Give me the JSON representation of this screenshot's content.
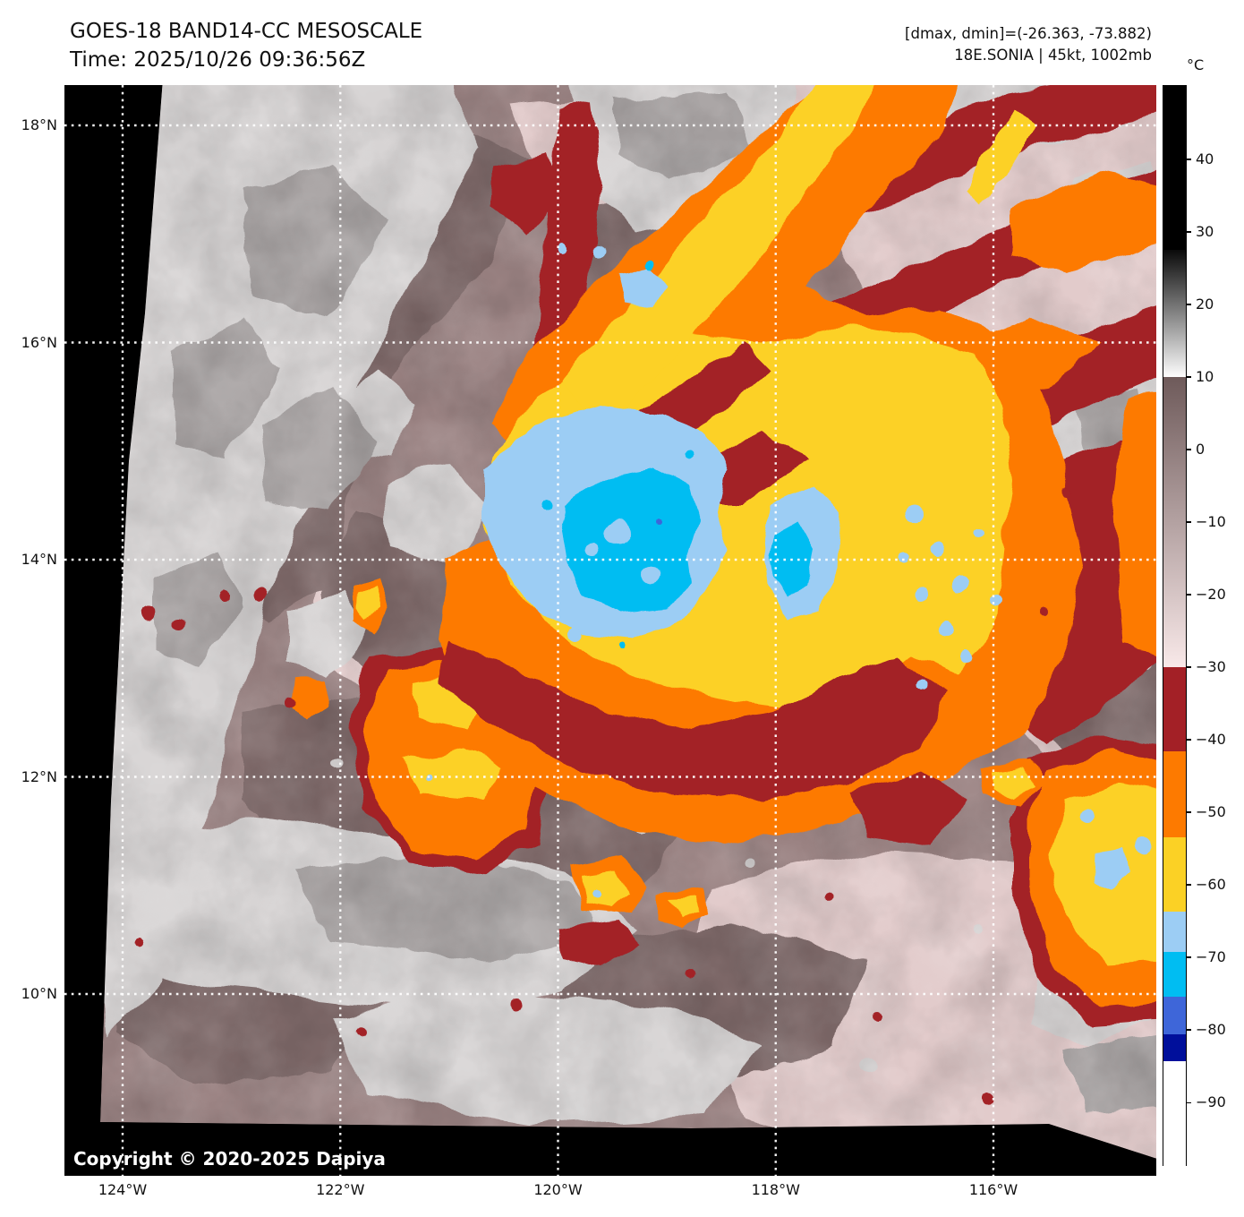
{
  "header": {
    "title_line1": "GOES-18 BAND14-CC MESOSCALE",
    "title_line2": "Time: 2025/10/26 09:36:56Z",
    "meta_line1": "[dmax, dmin]=(-26.363, -73.882)",
    "meta_line2": "18E.SONIA | 45kt, 1002mb"
  },
  "map": {
    "lat_ticks": [
      "18°N",
      "16°N",
      "14°N",
      "12°N",
      "10°N"
    ],
    "lon_ticks": [
      "124°W",
      "122°W",
      "120°W",
      "118°W",
      "116°W"
    ],
    "copyright": "Copyright © 2020-2025 Dapiya"
  },
  "colorbar": {
    "unit_label": "°C",
    "scale_top_temp": 50.1,
    "scale_bottom_temp": -98.6,
    "tick_values": [
      40,
      30,
      20,
      10,
      0,
      -10,
      -20,
      -30,
      -40,
      -50,
      -60,
      -70,
      -80,
      -90
    ],
    "segments": [
      {
        "from": 50.1,
        "to": 27.5,
        "color": "#000000"
      },
      {
        "from": 27.5,
        "to": 10,
        "color_top": "#0a0a0a",
        "color_bottom": "#ffffff"
      },
      {
        "from": 10,
        "to": -30,
        "color_top": "#6e5a5a",
        "color_bottom": "#f9e9e9"
      },
      {
        "from": -30,
        "to": -41.6,
        "color": "#a32026"
      },
      {
        "from": -41.6,
        "to": -53.4,
        "color": "#fd7a00"
      },
      {
        "from": -53.4,
        "to": -63.7,
        "color": "#fbd125"
      },
      {
        "from": -63.7,
        "to": -69.2,
        "color": "#9ccdf4"
      },
      {
        "from": -69.2,
        "to": -75.4,
        "color": "#00bdf2"
      },
      {
        "from": -75.4,
        "to": -80.6,
        "color": "#3e66d9"
      },
      {
        "from": -80.6,
        "to": -84.3,
        "color": "#000f9b"
      },
      {
        "from": -84.3,
        "to": -98.6,
        "color": "#ffffff"
      }
    ]
  },
  "palette": {
    "background_space": "#000000",
    "base_mauve": "#9b8383",
    "dark_mauve": "#7e6969",
    "pale_pink": "#e2cbcb",
    "grey_cloud": "#d7d4d4",
    "dark_grey_cloud": "#a9a4a4",
    "dark_red": "#a32026",
    "orange": "#fd7a00",
    "yellow": "#fcd125",
    "light_blue": "#9ccdf4",
    "cyan": "#00bdf2",
    "royal_blue": "#3e66d9",
    "gridline": "#ffffff"
  }
}
